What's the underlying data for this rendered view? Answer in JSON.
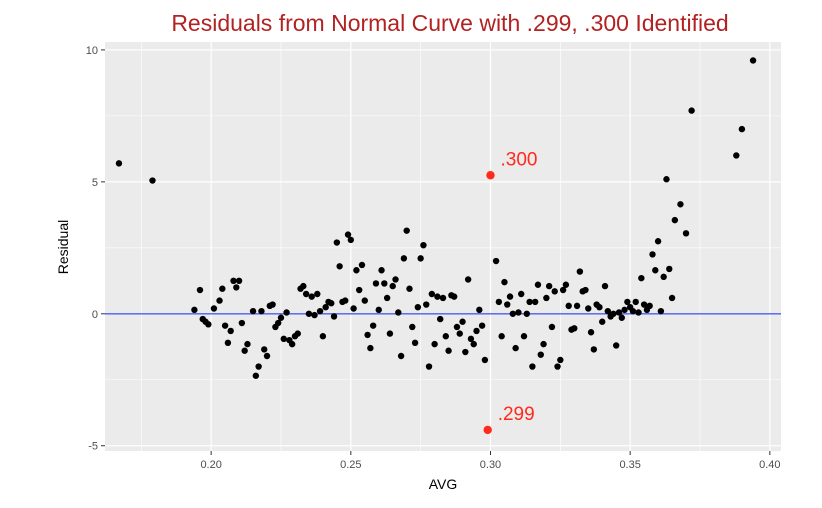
{
  "chart_data": {
    "type": "scatter",
    "title": "Residuals from Normal Curve with .299, .300 Identified",
    "xlabel": "AVG",
    "ylabel": "Residual",
    "xlim": [
      0.162,
      0.404
    ],
    "ylim": [
      -5.2,
      10.3
    ],
    "x_ticks": [
      0.2,
      0.25,
      0.3,
      0.35,
      0.4
    ],
    "x_tick_labels": [
      "0.20",
      "0.25",
      "0.30",
      "0.35",
      "0.40"
    ],
    "y_ticks": [
      -5,
      0,
      5,
      10
    ],
    "y_tick_labels": [
      "-5",
      "0",
      "5",
      "10"
    ],
    "grid": true,
    "reference_line": {
      "y": 0,
      "color": "#4a5cf0"
    },
    "colors": {
      "title": "#b22222",
      "points": "#000000",
      "highlight": "#ff2a1a",
      "panel": "#ebebeb",
      "grid": "#ffffff"
    },
    "highlighted": [
      {
        "label": ".300",
        "x": 0.3,
        "y": 5.25
      },
      {
        "label": ".299",
        "x": 0.299,
        "y": -4.4
      }
    ],
    "points": [
      [
        0.167,
        5.7
      ],
      [
        0.179,
        5.05
      ],
      [
        0.194,
        0.15
      ],
      [
        0.196,
        0.9
      ],
      [
        0.197,
        -0.2
      ],
      [
        0.198,
        -0.3
      ],
      [
        0.199,
        -0.4
      ],
      [
        0.201,
        0.2
      ],
      [
        0.203,
        0.5
      ],
      [
        0.204,
        0.95
      ],
      [
        0.205,
        -0.45
      ],
      [
        0.206,
        -1.1
      ],
      [
        0.207,
        -0.65
      ],
      [
        0.208,
        1.25
      ],
      [
        0.209,
        1.0
      ],
      [
        0.21,
        1.25
      ],
      [
        0.211,
        -0.35
      ],
      [
        0.212,
        -1.4
      ],
      [
        0.213,
        -1.15
      ],
      [
        0.215,
        0.1
      ],
      [
        0.216,
        -2.35
      ],
      [
        0.217,
        -2.0
      ],
      [
        0.218,
        0.1
      ],
      [
        0.219,
        -1.35
      ],
      [
        0.22,
        -1.6
      ],
      [
        0.221,
        0.3
      ],
      [
        0.222,
        0.35
      ],
      [
        0.223,
        -0.5
      ],
      [
        0.224,
        -0.35
      ],
      [
        0.225,
        -0.15
      ],
      [
        0.226,
        -0.95
      ],
      [
        0.227,
        0.05
      ],
      [
        0.228,
        -1.0
      ],
      [
        0.229,
        -1.15
      ],
      [
        0.23,
        -0.85
      ],
      [
        0.231,
        -0.75
      ],
      [
        0.232,
        0.95
      ],
      [
        0.233,
        1.05
      ],
      [
        0.234,
        0.75
      ],
      [
        0.235,
        0.0
      ],
      [
        0.236,
        0.65
      ],
      [
        0.237,
        -0.05
      ],
      [
        0.238,
        0.75
      ],
      [
        0.239,
        0.1
      ],
      [
        0.24,
        -0.85
      ],
      [
        0.241,
        0.25
      ],
      [
        0.242,
        0.45
      ],
      [
        0.243,
        0.4
      ],
      [
        0.244,
        -0.1
      ],
      [
        0.245,
        2.7
      ],
      [
        0.246,
        1.8
      ],
      [
        0.247,
        0.45
      ],
      [
        0.248,
        0.5
      ],
      [
        0.249,
        3.0
      ],
      [
        0.25,
        2.8
      ],
      [
        0.251,
        0.2
      ],
      [
        0.252,
        1.65
      ],
      [
        0.253,
        0.9
      ],
      [
        0.254,
        1.85
      ],
      [
        0.255,
        0.5
      ],
      [
        0.256,
        -0.8
      ],
      [
        0.257,
        -1.3
      ],
      [
        0.258,
        -0.45
      ],
      [
        0.259,
        1.15
      ],
      [
        0.26,
        0.15
      ],
      [
        0.261,
        1.65
      ],
      [
        0.262,
        1.15
      ],
      [
        0.263,
        0.6
      ],
      [
        0.264,
        -0.75
      ],
      [
        0.265,
        1.05
      ],
      [
        0.266,
        1.3
      ],
      [
        0.267,
        0.05
      ],
      [
        0.268,
        -1.6
      ],
      [
        0.269,
        2.1
      ],
      [
        0.27,
        3.15
      ],
      [
        0.271,
        0.95
      ],
      [
        0.272,
        -0.5
      ],
      [
        0.273,
        -1.1
      ],
      [
        0.274,
        0.25
      ],
      [
        0.275,
        2.1
      ],
      [
        0.276,
        2.6
      ],
      [
        0.277,
        0.35
      ],
      [
        0.278,
        -2.0
      ],
      [
        0.279,
        0.75
      ],
      [
        0.28,
        -1.15
      ],
      [
        0.281,
        0.65
      ],
      [
        0.282,
        -0.2
      ],
      [
        0.283,
        0.6
      ],
      [
        0.284,
        -0.85
      ],
      [
        0.285,
        -1.4
      ],
      [
        0.286,
        0.7
      ],
      [
        0.287,
        0.65
      ],
      [
        0.288,
        -0.5
      ],
      [
        0.289,
        -0.75
      ],
      [
        0.29,
        -0.3
      ],
      [
        0.291,
        -1.45
      ],
      [
        0.292,
        1.3
      ],
      [
        0.293,
        -0.95
      ],
      [
        0.294,
        -1.15
      ],
      [
        0.295,
        -0.65
      ],
      [
        0.296,
        0.15
      ],
      [
        0.297,
        -0.45
      ],
      [
        0.298,
        -1.75
      ],
      [
        0.302,
        2.0
      ],
      [
        0.303,
        0.45
      ],
      [
        0.304,
        -0.85
      ],
      [
        0.305,
        1.2
      ],
      [
        0.306,
        0.35
      ],
      [
        0.307,
        0.65
      ],
      [
        0.308,
        0.0
      ],
      [
        0.309,
        -1.3
      ],
      [
        0.31,
        0.05
      ],
      [
        0.311,
        0.75
      ],
      [
        0.312,
        -0.85
      ],
      [
        0.313,
        0.0
      ],
      [
        0.314,
        0.45
      ],
      [
        0.315,
        -2.0
      ],
      [
        0.316,
        0.45
      ],
      [
        0.317,
        1.1
      ],
      [
        0.318,
        -1.55
      ],
      [
        0.319,
        -1.15
      ],
      [
        0.32,
        0.6
      ],
      [
        0.321,
        1.05
      ],
      [
        0.322,
        -0.5
      ],
      [
        0.323,
        0.85
      ],
      [
        0.324,
        -2.0
      ],
      [
        0.325,
        -1.75
      ],
      [
        0.326,
        0.9
      ],
      [
        0.327,
        1.1
      ],
      [
        0.328,
        0.3
      ],
      [
        0.329,
        -0.6
      ],
      [
        0.33,
        -0.55
      ],
      [
        0.331,
        0.3
      ],
      [
        0.332,
        1.6
      ],
      [
        0.333,
        0.85
      ],
      [
        0.334,
        0.9
      ],
      [
        0.335,
        0.2
      ],
      [
        0.336,
        -0.7
      ],
      [
        0.337,
        -1.35
      ],
      [
        0.338,
        0.35
      ],
      [
        0.339,
        0.25
      ],
      [
        0.34,
        -0.3
      ],
      [
        0.341,
        1.05
      ],
      [
        0.342,
        0.1
      ],
      [
        0.343,
        -0.1
      ],
      [
        0.344,
        0.0
      ],
      [
        0.345,
        -1.2
      ],
      [
        0.346,
        0.05
      ],
      [
        0.347,
        -0.15
      ],
      [
        0.348,
        0.15
      ],
      [
        0.349,
        0.45
      ],
      [
        0.35,
        0.25
      ],
      [
        0.351,
        0.1
      ],
      [
        0.352,
        0.45
      ],
      [
        0.353,
        0.05
      ],
      [
        0.354,
        1.35
      ],
      [
        0.355,
        0.35
      ],
      [
        0.356,
        0.15
      ],
      [
        0.357,
        0.3
      ],
      [
        0.358,
        2.25
      ],
      [
        0.359,
        1.65
      ],
      [
        0.36,
        2.75
      ],
      [
        0.361,
        0.1
      ],
      [
        0.362,
        1.4
      ],
      [
        0.363,
        5.1
      ],
      [
        0.364,
        1.7
      ],
      [
        0.365,
        0.6
      ],
      [
        0.366,
        3.55
      ],
      [
        0.368,
        4.15
      ],
      [
        0.37,
        3.05
      ],
      [
        0.372,
        7.7
      ],
      [
        0.388,
        6.0
      ],
      [
        0.39,
        7.0
      ],
      [
        0.394,
        9.6
      ]
    ]
  }
}
